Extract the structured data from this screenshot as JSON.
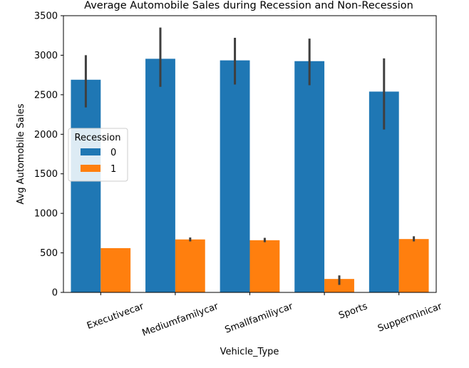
{
  "chart_data": {
    "type": "bar",
    "title": "Average Automobile Sales during Recession and Non-Recession",
    "xlabel": "Vehicle_Type",
    "ylabel": "Avg Automobile Sales",
    "categories": [
      "Executivecar",
      "Mediumfamilycar",
      "Smallfamiliycar",
      "Sports",
      "Supperminicar"
    ],
    "series": [
      {
        "name": "0",
        "color": "#1f77b4",
        "values": [
          2690,
          2955,
          2935,
          2925,
          2540
        ],
        "ci_low": [
          2340,
          2600,
          2630,
          2620,
          2060
        ],
        "ci_high": [
          3000,
          3350,
          3220,
          3210,
          2960
        ]
      },
      {
        "name": "1",
        "color": "#ff7f0e",
        "values": [
          560,
          670,
          660,
          170,
          675
        ],
        "ci_low": [
          560,
          645,
          635,
          95,
          645
        ],
        "ci_high": [
          560,
          695,
          690,
          215,
          710
        ]
      }
    ],
    "ylim": [
      0,
      3500
    ],
    "yticks": [
      "0",
      "500",
      "1000",
      "1500",
      "2000",
      "2500",
      "3000",
      "3500"
    ],
    "legend": {
      "title": "Recession",
      "position": "left"
    },
    "grid": false
  }
}
